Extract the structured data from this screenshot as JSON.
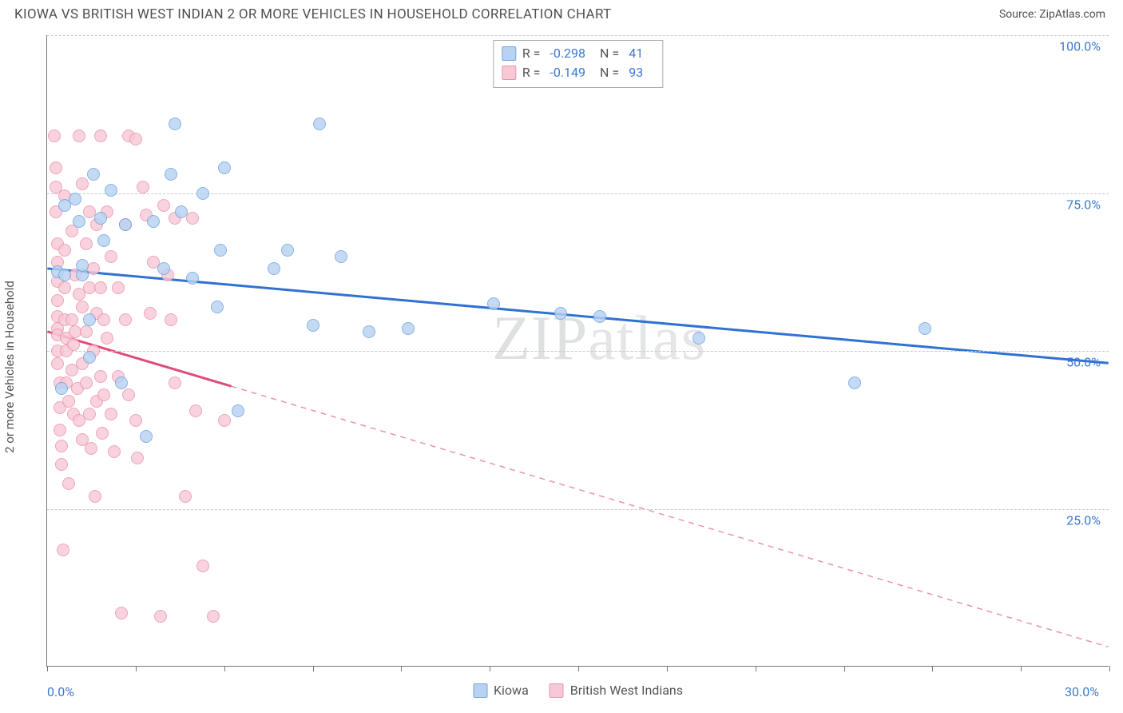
{
  "header": {
    "title": "KIOWA VS BRITISH WEST INDIAN 2 OR MORE VEHICLES IN HOUSEHOLD CORRELATION CHART",
    "source": "Source: ZipAtlas.com"
  },
  "chart": {
    "type": "scatter",
    "ylabel": "2 or more Vehicles in Household",
    "watermark": "ZIPatlas",
    "background_color": "#ffffff",
    "grid_color": "#c9c9c9",
    "axis_color": "#777777",
    "label_color": "#555555",
    "value_color": "#3b79d6",
    "xlim": [
      0,
      30
    ],
    "ylim": [
      0,
      100
    ],
    "xticks": [
      0.0,
      2.5,
      5.0,
      7.5,
      10.0,
      12.5,
      15.0,
      17.5,
      20.0,
      22.5,
      25.0,
      27.5,
      30.0
    ],
    "xtick_labels": {
      "0": "0.0%",
      "30": "30.0%"
    },
    "yticks": [
      25.0,
      50.0,
      75.0,
      100.0
    ],
    "ytick_labels": {
      "25": "25.0%",
      "50": "50.0%",
      "75": "75.0%",
      "100": "100.0%"
    },
    "marker_radius": 8,
    "marker_border_width": 1.4,
    "series": [
      {
        "name": "Kiowa",
        "color_fill": "#b8d2f2",
        "color_border": "#6fa3e0",
        "line_color": "#2f72d4",
        "line_width": 3,
        "R": "-0.298",
        "N": "41",
        "trend": {
          "x1": 0.0,
          "y1": 63.0,
          "x2": 30.0,
          "y2": 48.0,
          "solid_until_x": 30.0
        },
        "points": [
          [
            0.3,
            62.5
          ],
          [
            0.4,
            44.0
          ],
          [
            0.5,
            73.0
          ],
          [
            0.5,
            62.0
          ],
          [
            0.8,
            74.0
          ],
          [
            0.9,
            70.5
          ],
          [
            1.0,
            62.0
          ],
          [
            1.0,
            63.5
          ],
          [
            1.2,
            55.0
          ],
          [
            1.2,
            49.0
          ],
          [
            1.3,
            78.0
          ],
          [
            1.5,
            71.0
          ],
          [
            1.6,
            67.5
          ],
          [
            1.8,
            75.5
          ],
          [
            2.1,
            45.0
          ],
          [
            2.2,
            70.0
          ],
          [
            2.8,
            36.5
          ],
          [
            3.0,
            70.5
          ],
          [
            3.3,
            63.0
          ],
          [
            3.5,
            78.0
          ],
          [
            3.6,
            86.0
          ],
          [
            3.8,
            72.0
          ],
          [
            4.1,
            61.5
          ],
          [
            4.4,
            75.0
          ],
          [
            4.8,
            57.0
          ],
          [
            4.9,
            66.0
          ],
          [
            5.0,
            79.0
          ],
          [
            5.4,
            40.5
          ],
          [
            6.4,
            63.0
          ],
          [
            6.8,
            66.0
          ],
          [
            7.5,
            54.0
          ],
          [
            7.7,
            86.0
          ],
          [
            8.3,
            65.0
          ],
          [
            9.1,
            53.0
          ],
          [
            10.2,
            53.5
          ],
          [
            12.6,
            57.5
          ],
          [
            14.5,
            56.0
          ],
          [
            15.6,
            55.5
          ],
          [
            18.4,
            52.0
          ],
          [
            22.8,
            45.0
          ],
          [
            24.8,
            53.5
          ]
        ]
      },
      {
        "name": "British West Indians",
        "color_fill": "#f7c9d6",
        "color_border": "#ec92ac",
        "line_color": "#e14b7a",
        "line_width": 3,
        "R": "-0.149",
        "N": "93",
        "trend": {
          "x1": 0.0,
          "y1": 53.0,
          "x2": 30.0,
          "y2": 3.0,
          "solid_until_x": 5.2
        },
        "points": [
          [
            0.2,
            84.0
          ],
          [
            0.25,
            79.0
          ],
          [
            0.25,
            76.0
          ],
          [
            0.25,
            72.0
          ],
          [
            0.3,
            67.0
          ],
          [
            0.3,
            64.0
          ],
          [
            0.3,
            61.0
          ],
          [
            0.3,
            58.0
          ],
          [
            0.3,
            55.5
          ],
          [
            0.3,
            53.5
          ],
          [
            0.3,
            52.5
          ],
          [
            0.3,
            50.0
          ],
          [
            0.3,
            48.0
          ],
          [
            0.35,
            45.0
          ],
          [
            0.35,
            41.0
          ],
          [
            0.35,
            37.5
          ],
          [
            0.4,
            35.0
          ],
          [
            0.4,
            32.0
          ],
          [
            0.45,
            18.5
          ],
          [
            0.5,
            74.5
          ],
          [
            0.5,
            66.0
          ],
          [
            0.5,
            60.0
          ],
          [
            0.5,
            55.0
          ],
          [
            0.55,
            52.0
          ],
          [
            0.55,
            50.0
          ],
          [
            0.55,
            45.0
          ],
          [
            0.6,
            42.0
          ],
          [
            0.6,
            29.0
          ],
          [
            0.7,
            69.0
          ],
          [
            0.7,
            55.0
          ],
          [
            0.7,
            47.0
          ],
          [
            0.75,
            51.0
          ],
          [
            0.75,
            40.0
          ],
          [
            0.8,
            62.0
          ],
          [
            0.8,
            53.0
          ],
          [
            0.85,
            44.0
          ],
          [
            0.9,
            84.0
          ],
          [
            0.9,
            59.0
          ],
          [
            0.9,
            39.0
          ],
          [
            1.0,
            76.5
          ],
          [
            1.0,
            57.0
          ],
          [
            1.0,
            48.0
          ],
          [
            1.0,
            36.0
          ],
          [
            1.1,
            67.0
          ],
          [
            1.1,
            53.0
          ],
          [
            1.1,
            45.0
          ],
          [
            1.2,
            72.0
          ],
          [
            1.2,
            60.0
          ],
          [
            1.2,
            40.0
          ],
          [
            1.25,
            34.5
          ],
          [
            1.3,
            63.0
          ],
          [
            1.3,
            50.0
          ],
          [
            1.35,
            27.0
          ],
          [
            1.4,
            70.0
          ],
          [
            1.4,
            56.0
          ],
          [
            1.4,
            42.0
          ],
          [
            1.5,
            84.0
          ],
          [
            1.5,
            60.0
          ],
          [
            1.5,
            46.0
          ],
          [
            1.55,
            37.0
          ],
          [
            1.6,
            55.0
          ],
          [
            1.6,
            43.0
          ],
          [
            1.7,
            72.0
          ],
          [
            1.7,
            52.0
          ],
          [
            1.8,
            65.0
          ],
          [
            1.8,
            40.0
          ],
          [
            1.9,
            34.0
          ],
          [
            2.0,
            60.0
          ],
          [
            2.0,
            46.0
          ],
          [
            2.1,
            8.5
          ],
          [
            2.2,
            70.0
          ],
          [
            2.2,
            55.0
          ],
          [
            2.3,
            84.0
          ],
          [
            2.3,
            43.0
          ],
          [
            2.5,
            83.5
          ],
          [
            2.5,
            39.0
          ],
          [
            2.55,
            33.0
          ],
          [
            2.7,
            76.0
          ],
          [
            2.8,
            71.5
          ],
          [
            2.9,
            56.0
          ],
          [
            3.0,
            64.0
          ],
          [
            3.2,
            8.0
          ],
          [
            3.3,
            73.0
          ],
          [
            3.4,
            62.0
          ],
          [
            3.5,
            55.0
          ],
          [
            3.6,
            71.0
          ],
          [
            3.6,
            45.0
          ],
          [
            3.9,
            27.0
          ],
          [
            4.1,
            71.0
          ],
          [
            4.2,
            40.5
          ],
          [
            4.4,
            16.0
          ],
          [
            4.7,
            8.0
          ],
          [
            5.0,
            39.0
          ]
        ]
      }
    ]
  }
}
